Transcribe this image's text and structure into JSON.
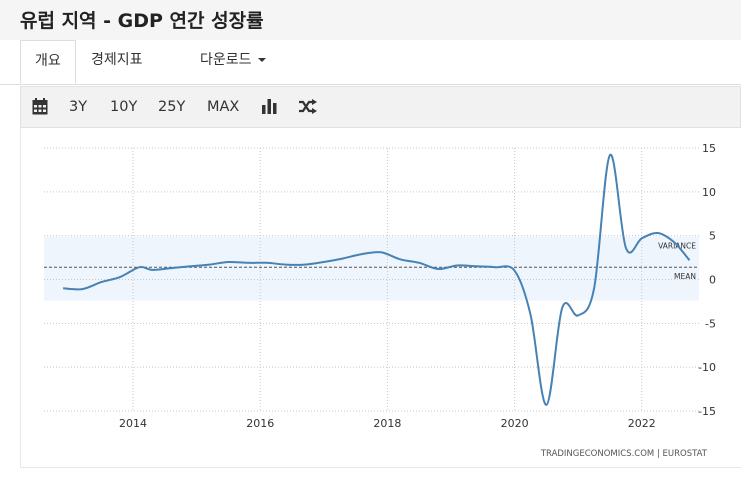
{
  "header": {
    "title": "유럽 지역 - GDP 연간 성장률"
  },
  "tabs": [
    {
      "label": "개요",
      "active": true
    },
    {
      "label": "경제지표",
      "active": false
    },
    {
      "label": "다운로드",
      "active": false,
      "dropdown": true
    }
  ],
  "toolbar": {
    "icons": [
      "calendar-icon",
      "bar-chart-icon",
      "shuffle-icon"
    ],
    "ranges": [
      "3Y",
      "10Y",
      "25Y",
      "MAX"
    ]
  },
  "chart_data": {
    "type": "line",
    "title": "",
    "xlabel": "",
    "ylabel": "",
    "x_ticks": [
      "2014",
      "2016",
      "2018",
      "2020",
      "2022"
    ],
    "y_ticks": [
      "15",
      "10",
      "5",
      "0",
      "-5",
      "-10",
      "-15"
    ],
    "ylim": [
      -15,
      15
    ],
    "xlim": [
      2012.6,
      2022.9
    ],
    "grid": true,
    "axis_side": "right",
    "series": [
      {
        "color": "#4682b4",
        "x": [
          2012.9,
          2013.2,
          2013.5,
          2013.8,
          2014.1,
          2014.3,
          2014.6,
          2014.9,
          2015.2,
          2015.5,
          2015.8,
          2016.1,
          2016.4,
          2016.7,
          2017.0,
          2017.3,
          2017.6,
          2017.9,
          2018.2,
          2018.5,
          2018.8,
          2019.1,
          2019.4,
          2019.7,
          2020.0,
          2020.25,
          2020.5,
          2020.75,
          2021.0,
          2021.25,
          2021.5,
          2021.75,
          2022.0,
          2022.25,
          2022.5,
          2022.75
        ],
        "values": [
          -1.0,
          -1.1,
          -0.3,
          0.3,
          1.4,
          1.1,
          1.3,
          1.5,
          1.7,
          2.0,
          1.9,
          1.9,
          1.7,
          1.7,
          2.0,
          2.4,
          2.9,
          3.1,
          2.3,
          1.9,
          1.2,
          1.6,
          1.5,
          1.4,
          1.0,
          -4.0,
          -14.3,
          -3.2,
          -4.1,
          -1.0,
          14.2,
          3.6,
          4.7,
          5.3,
          4.3,
          2.2
        ]
      }
    ],
    "mean_line": 1.4,
    "variance_band": [
      -2.4,
      4.9
    ],
    "annotations": [
      "VARIANCE",
      "MEAN"
    ],
    "source": "TRADINGECONOMICS.COM  |  EUROSTAT"
  }
}
